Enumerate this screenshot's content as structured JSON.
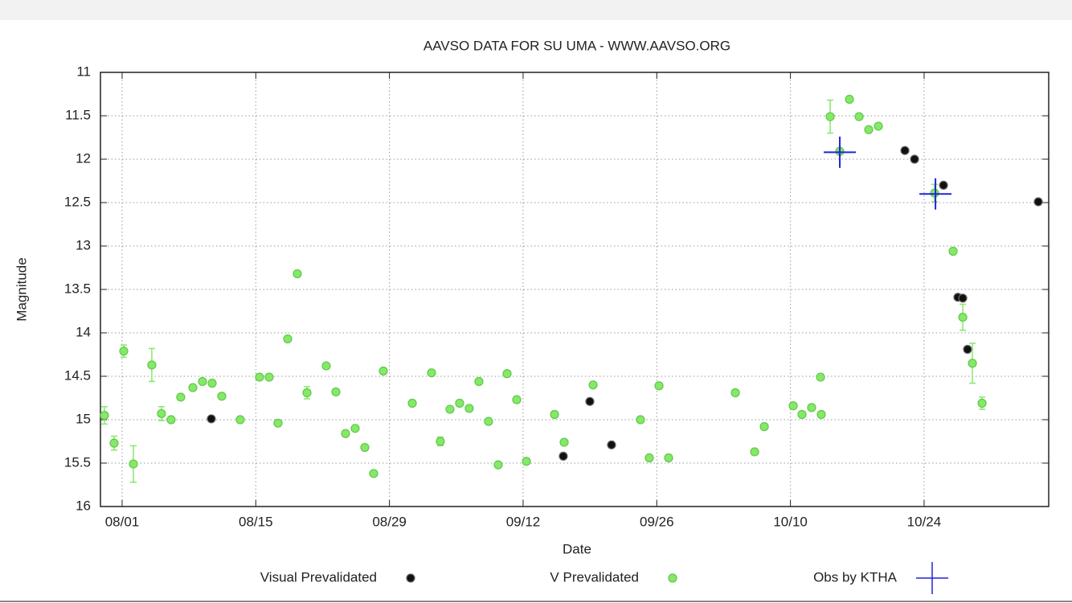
{
  "chart_data": {
    "type": "scatter",
    "title": "AAVSO DATA FOR SU UMA - WWW.AAVSO.ORG",
    "x_label": "Date",
    "y_label": "Magnitude",
    "xlim": [
      -2.27,
      97.05
    ],
    "xticks": [
      {
        "value": 0,
        "label": "08/01"
      },
      {
        "value": 14,
        "label": "08/15"
      },
      {
        "value": 28,
        "label": "08/29"
      },
      {
        "value": 42,
        "label": "09/12"
      },
      {
        "value": 56,
        "label": "09/26"
      },
      {
        "value": 70,
        "label": "10/10"
      },
      {
        "value": 84,
        "label": "10/24"
      }
    ],
    "ylim": [
      16,
      11
    ],
    "yticks": [
      11,
      11.5,
      12,
      12.5,
      13,
      13.5,
      14,
      14.5,
      15,
      15.5,
      16
    ],
    "grid": true,
    "series": [
      {
        "name": "Visual Prevalidated",
        "color": "#111111",
        "marker": "circle",
        "x": [
          9.34,
          46.21,
          48.99,
          51.26,
          81.99,
          83.0,
          86.03,
          87.54,
          88.05,
          88.55,
          95.96
        ],
        "values": [
          14.99,
          15.42,
          14.79,
          15.29,
          11.9,
          12.0,
          12.3,
          13.59,
          13.6,
          14.19,
          12.49
        ]
      },
      {
        "name": "V Prevalidated",
        "color": "#86e86a",
        "marker": "circle",
        "x": [
          -1.85,
          -0.84,
          0.17,
          1.18,
          3.11,
          4.12,
          5.13,
          6.14,
          7.41,
          8.42,
          9.43,
          10.44,
          12.37,
          14.39,
          15.4,
          16.33,
          17.34,
          18.35,
          19.36,
          21.38,
          22.39,
          23.4,
          24.41,
          25.42,
          26.35,
          27.36,
          30.39,
          32.41,
          33.33,
          34.34,
          35.35,
          36.36,
          37.37,
          38.38,
          39.39,
          40.32,
          41.33,
          42.34,
          45.29,
          46.3,
          49.33,
          54.29,
          55.22,
          56.23,
          57.24,
          64.23,
          66.25,
          67.26,
          70.29,
          71.21,
          72.22,
          73.15,
          73.23,
          74.16,
          75.17,
          76.18,
          77.19,
          78.2,
          79.21,
          85.1,
          87.04,
          88.05,
          89.06,
          90.07
        ],
        "values": [
          14.95,
          15.27,
          14.21,
          15.51,
          14.37,
          14.93,
          15.0,
          14.74,
          14.63,
          14.56,
          14.58,
          14.73,
          15.0,
          14.51,
          14.51,
          15.04,
          14.07,
          13.32,
          14.69,
          14.38,
          14.68,
          15.16,
          15.1,
          15.32,
          15.62,
          14.44,
          14.81,
          14.46,
          15.25,
          14.88,
          14.81,
          14.87,
          14.56,
          15.02,
          15.52,
          14.47,
          14.77,
          15.48,
          14.94,
          15.26,
          14.6,
          15.0,
          15.44,
          14.61,
          15.44,
          14.69,
          15.37,
          15.08,
          14.84,
          14.94,
          14.86,
          14.51,
          14.94,
          11.51,
          11.91,
          11.31,
          11.51,
          11.66,
          11.62,
          12.39,
          13.06,
          13.82,
          14.35,
          14.81
        ],
        "errors": [
          0.1,
          0.08,
          0.07,
          0.21,
          0.19,
          0.08,
          null,
          null,
          null,
          null,
          null,
          null,
          null,
          null,
          null,
          null,
          null,
          null,
          0.07,
          null,
          null,
          null,
          null,
          null,
          null,
          null,
          null,
          null,
          0.05,
          null,
          null,
          null,
          null,
          null,
          null,
          null,
          null,
          null,
          null,
          null,
          null,
          null,
          null,
          null,
          null,
          null,
          null,
          null,
          null,
          null,
          null,
          null,
          null,
          0.19,
          null,
          null,
          null,
          null,
          null,
          0.1,
          null,
          0.15,
          0.23,
          0.07
        ]
      },
      {
        "name": "Obs by KTHA",
        "color": "#2222dd",
        "marker": "cross",
        "x": [
          75.17,
          85.19
        ],
        "values": [
          11.92,
          12.4
        ],
        "errors": [
          0.18,
          0.18
        ],
        "x_errors": [
          1.68,
          1.68
        ]
      }
    ]
  }
}
